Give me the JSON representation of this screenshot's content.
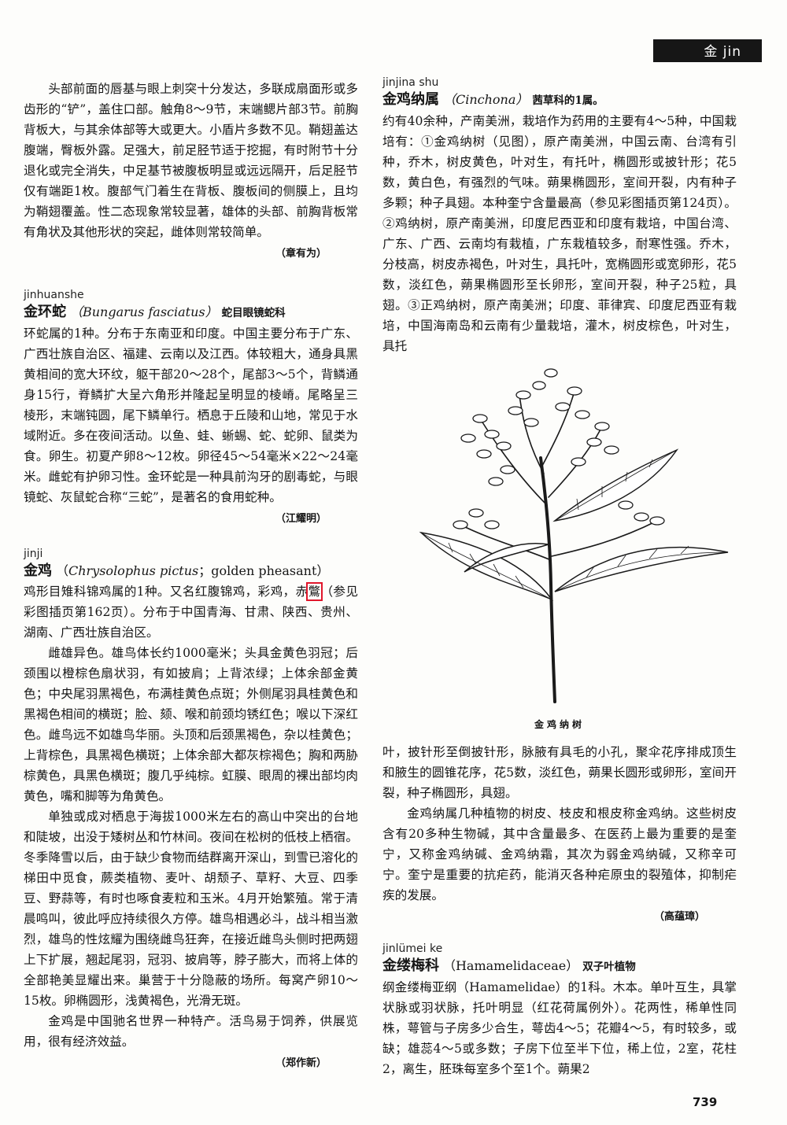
{
  "header": {
    "tab_label": "金  jin",
    "page_number": "739"
  },
  "entries": {
    "continuation": {
      "text": "头部前面的唇基与眼上刺突十分发达，多联成扇面形或多齿形的“铲”，盖住口部。触角8～9节，末端鳃片部3节。前胸背板大，与其余体部等大或更大。小盾片多数不见。鞘翅盖达腹端，臀板外露。足强大，前足胫节适于挖掘，有时附节十分退化或完全消失，中足基节被腹板明显或远远隔开，后足胫节仅有端距1枚。腹部气门着生在背板、腹板间的侧膜上，且均为鞘翅覆盖。性二态现象常较显著，雄体的头部、前胸背板常有角状及其他形状的突起，雌体则常较简单。",
      "author": "（章有为）"
    },
    "jinhuanshe": {
      "pinyin": "jinhuanshe",
      "headword": "金环蛇",
      "latin": "（Bungarus fasciatus）",
      "classification": "蛇目眼镜蛇科",
      "text": "环蛇属的1种。分布于东南亚和印度。中国主要分布于广东、广西壮族自治区、福建、云南以及江西。体较粗大，通身具黑黄相间的宽大环纹，躯干部20～28个，尾部3～5个，背鳞通身15行，脊鳞扩大呈六角形并隆起呈明显的棱嵴。尾略呈三棱形，末端钝圆，尾下鳞单行。栖息于丘陵和山地，常见于水域附近。多在夜间活动。以鱼、蛙、蜥蜴、蛇、蛇卵、鼠类为食。卵生。初夏产卵8～12枚。卵径45～54毫米×22～24毫米。雌蛇有护卵习性。金环蛇是一种具前沟牙的剧毒蛇，与眼镜蛇、灰鼠蛇合称“三蛇”，是著名的食用蛇种。",
      "author": "（江耀明）"
    },
    "jinji": {
      "pinyin": "jinji",
      "headword": "金鸡",
      "latin_sci": "Chrysolophus pictus",
      "latin_sep": "；",
      "english": "golden pheasant",
      "open_paren": "（",
      "close_paren": "）",
      "intro_before": "鸡形目雉科锦鸡属的1种。又名红腹锦鸡，彩鸡，赤",
      "intro_highlight": "鷩",
      "intro_after": "（参见彩图插页第162页）。分布于中国青海、甘肃、陕西、贵州、湖南、广西壮族自治区。",
      "p2": "雌雄异色。雄鸟体长约1000毫米；头具金黄色羽冠；后颈围以橙棕色扇状羽，有如披肩；上背浓绿；上体余部金黄色；中央尾羽黑褐色，布满桂黄色点斑；外侧尾羽具桂黄色和黑褐色相间的横斑；脸、颏、喉和前颈均锈红色；喉以下深红色。雌鸟远不如雄鸟华丽。头顶和后颈黑褐色，杂以桂黄色；上背棕色，具黑褐色横斑；上体余部大都灰棕褐色；胸和两胁棕黄色，具黑色横斑；腹几乎纯棕。虹膜、眼周的裸出部均肉黄色，嘴和脚等为角黄色。",
      "p3": "单独或成对栖息于海拔1000米左右的高山中突出的台地和陡坡，出没于矮树丛和竹林间。夜间在松树的低枝上栖宿。冬季降雪以后，由于缺少食物而结群离开深山，到雪已溶化的梯田中觅食，蕨类植物、麦叶、胡颓子、草籽、大豆、四季豆、野蒜等，有时也啄食麦粒和玉米。4月开始繁殖。常于清晨鸣叫，彼此呼应持续很久方停。雄鸟相遇必斗，战斗相当激烈，雄鸟的性炫耀为围绕雌鸟狂奔，在接近雌鸟头侧时把两翅上下扩展，翘起尾羽，冠羽、披肩等，脖子膨大，而将上体的全部艳美显耀出来。巢营于十分隐蔽的场所。每窝产卵10～15枚。卵椭圆形，浅黄褐色，光滑无斑。",
      "p4": "金鸡是中国驰名世界一种特产。活鸟易于饲养，供展览用，很有经济效益。",
      "author": "（郑作新）"
    },
    "jinjinashu": {
      "pinyin": "jinjina shu",
      "headword": "金鸡纳属",
      "latin": "（Cinchona）",
      "classification": "茜草科的1属。",
      "text_top": "约有40余种，产南美洲，栽培作为药用的主要有4～5种，中国栽培有：①金鸡纳树（见图），原产南美洲，中国云南、台湾有引种，乔木，树皮黄色，叶对生，有托叶，椭圆形或披针形；花5数，黄白色，有强烈的气味。蒴果椭圆形，室间开裂，内有种子多颗；种子具翅。本种奎宁含量最高（参见彩图插页第124页）。②鸡纳树，原产南美洲，印度尼西亚和印度有栽培，中国台湾、广东、广西、云南均有栽植，广东栽植较多，耐寒性强。乔木，分枝高，树皮赤褐色，叶对生，具托叶，宽椭圆形或宽卵形，花5数，淡红色，蒴果椭圆形至长卵形，室间开裂，种子25粒，具翅。③正鸡纳树，原产南美洲；印度、菲律宾、印度尼西亚有栽培，中国海南岛和云南有少量栽培，灌木，树皮棕色，叶对生，具托",
      "figure_caption": "金鸡纳树",
      "text_bottom": "叶，披针形至倒披针形，脉腋有具毛的小孔，聚伞花序排成顶生和腋生的圆锥花序，花5数，淡红色，蒴果长圆形或卵形，室间开裂，种子椭圆形，具翅。",
      "p2": "金鸡纳属几种植物的树皮、枝皮和根皮称金鸡纳。这些树皮含有20多种生物碱，其中含量最多、在医药上最为重要的是奎宁，又称金鸡纳碱、金鸡纳霜，其次为弱金鸡纳碱，又称辛可宁。奎宁是重要的抗疟药，能消灭各种疟原虫的裂殖体，抑制疟疾的发展。",
      "author": "（高蕴璋）"
    },
    "jinlumeike": {
      "pinyin": "jinlümei ke",
      "headword": "金缕梅科",
      "latin": "（Hamamelidaceae）",
      "classification": "双子叶植物",
      "text": "纲金缕梅亚纲（Hamamelidae）的1科。木本。单叶互生，具掌状脉或羽状脉，托叶明显（红花荷属例外）。花两性，稀单性同株，萼管与子房多少合生，萼齿4～5；花瓣4～5，有时较多，或缺；雄蕊4～5或多数；子房下位至半下位，稀上位，2室，花柱2，离生，胚珠每室多个至1个。蒴果2"
    }
  }
}
